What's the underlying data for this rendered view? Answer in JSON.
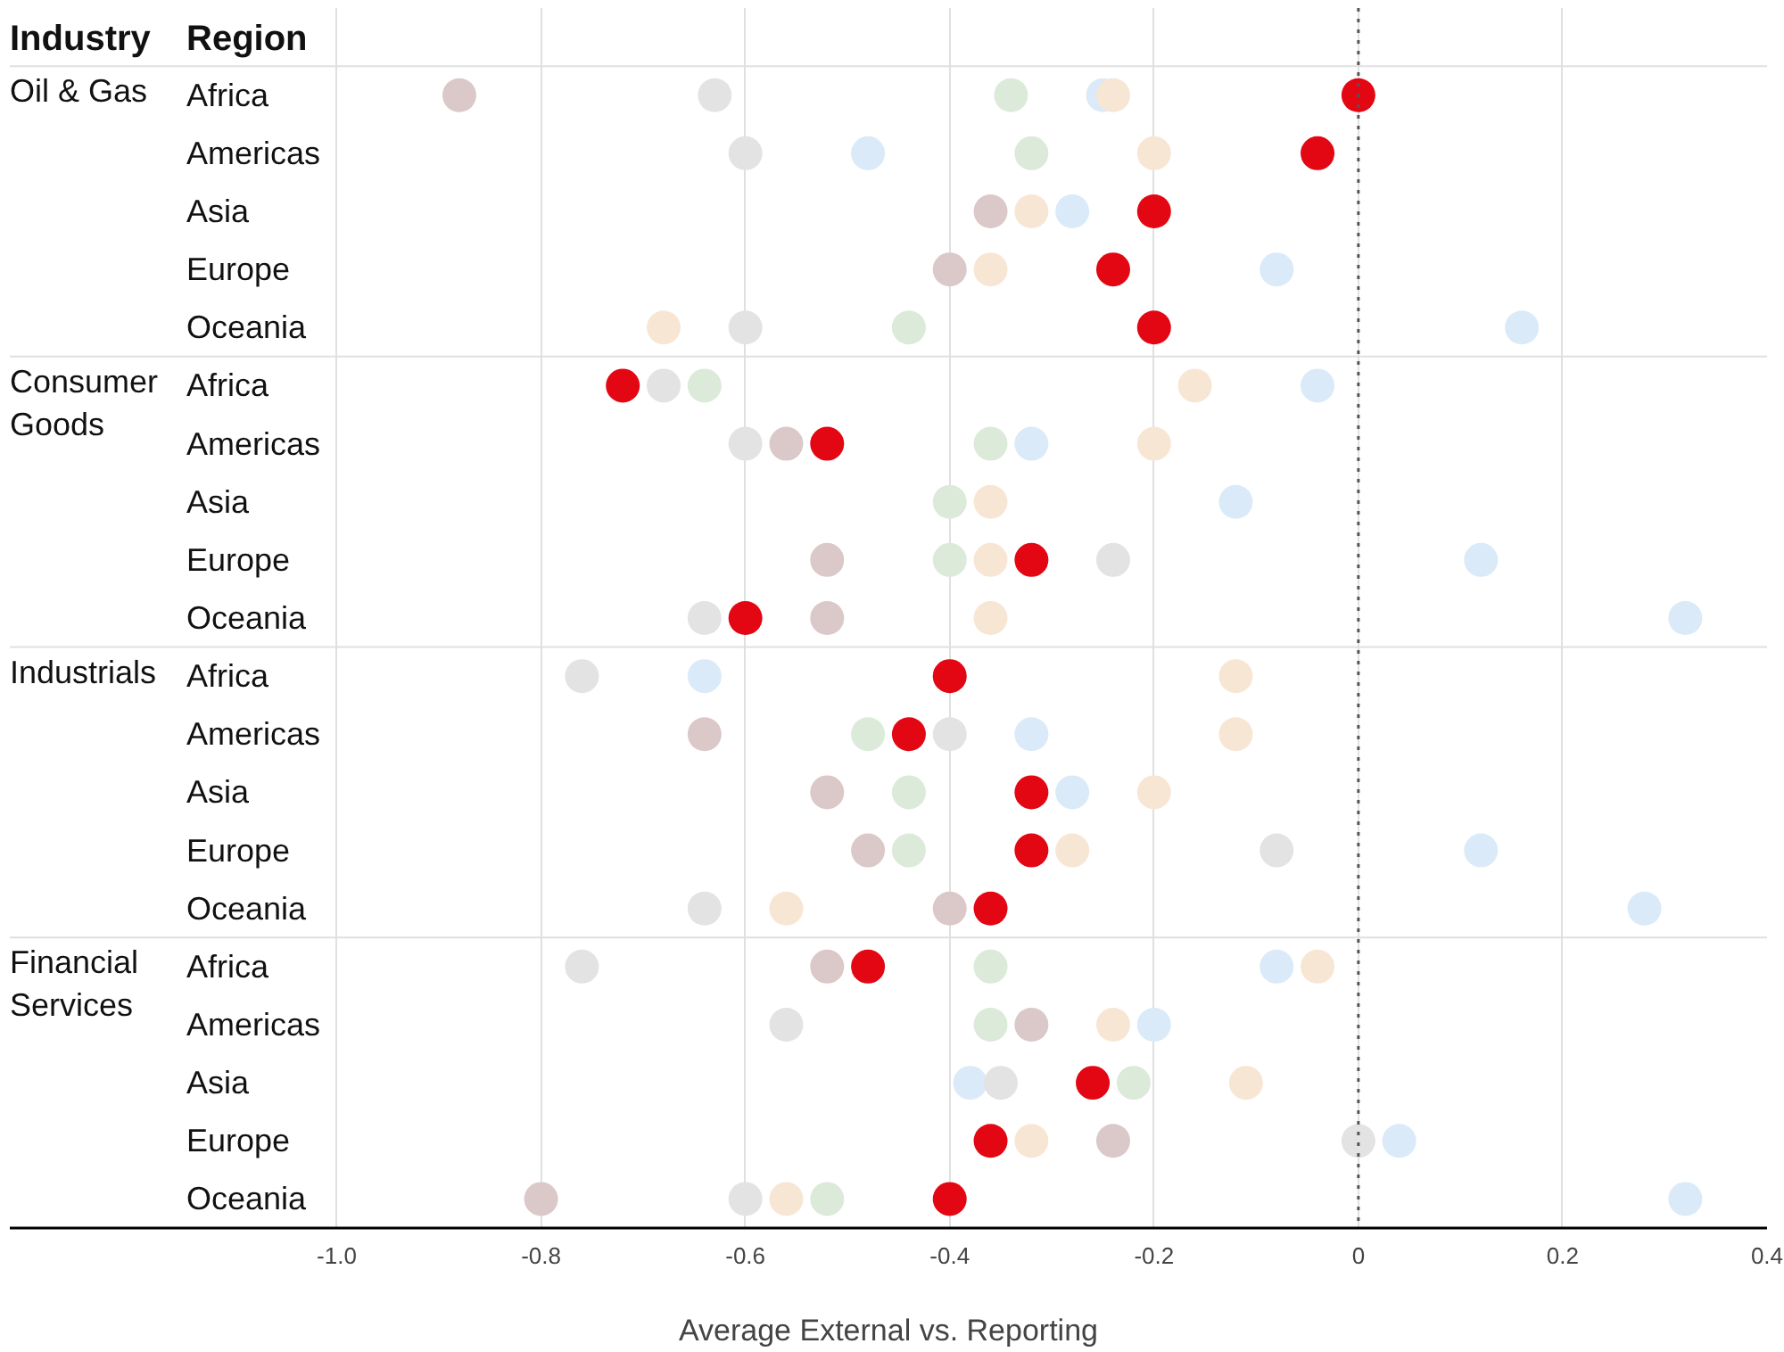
{
  "chart_data": {
    "type": "scatter",
    "orientation": "horizontal",
    "xlabel": "Average External vs. Reporting",
    "annotations": [
      "Industry",
      "Region",
      "Oil & Gas",
      "Consumer Goods",
      "Industrials",
      "Financial Services"
    ],
    "categories": [
      "Africa",
      "Americas",
      "Asia",
      "Europe",
      "Oceania",
      "Africa",
      "Americas",
      "Asia",
      "Europe",
      "Oceania",
      "Africa",
      "Americas",
      "Asia",
      "Europe",
      "Oceania",
      "Africa",
      "Americas",
      "Asia",
      "Europe",
      "Oceania"
    ],
    "series": [
      {
        "color": "#daeaf8",
        "values": [
          -0.25,
          -0.48,
          -0.28,
          -0.08,
          0.16,
          -0.04,
          -0.32,
          -0.12,
          0.12,
          0.32,
          -0.64,
          -0.32,
          -0.28,
          0.12,
          0.28,
          -0.08,
          -0.2,
          -0.38,
          0.04,
          0.32
        ]
      },
      {
        "color": "#e3e3e4",
        "values": [
          -0.63,
          -0.6,
          null,
          null,
          -0.6,
          -0.68,
          -0.6,
          null,
          -0.24,
          -0.64,
          -0.76,
          -0.4,
          null,
          -0.08,
          -0.64,
          -0.76,
          -0.56,
          -0.35,
          0,
          -0.6
        ]
      },
      {
        "color": "#dceada",
        "values": [
          -0.34,
          -0.32,
          null,
          null,
          -0.44,
          -0.64,
          -0.36,
          -0.4,
          -0.4,
          null,
          null,
          -0.48,
          -0.44,
          -0.44,
          null,
          -0.36,
          -0.36,
          -0.22,
          null,
          -0.52
        ]
      },
      {
        "color": "#f8e6d5",
        "values": [
          -0.24,
          -0.2,
          -0.32,
          -0.36,
          -0.68,
          -0.16,
          -0.2,
          -0.36,
          -0.36,
          -0.36,
          -0.12,
          -0.12,
          -0.2,
          -0.28,
          -0.56,
          -0.04,
          -0.24,
          -0.11,
          -0.32,
          -0.56
        ]
      },
      {
        "color": "#dbc8c8",
        "values": [
          -0.88,
          null,
          -0.36,
          -0.4,
          null,
          null,
          -0.56,
          null,
          -0.52,
          -0.52,
          null,
          -0.64,
          -0.52,
          -0.48,
          -0.4,
          -0.52,
          -0.32,
          null,
          -0.24,
          -0.8
        ]
      },
      {
        "color": "#e30613",
        "values": [
          0,
          -0.04,
          -0.2,
          -0.24,
          -0.2,
          -0.72,
          -0.52,
          null,
          -0.32,
          -0.6,
          -0.4,
          -0.44,
          -0.32,
          -0.32,
          -0.36,
          -0.48,
          null,
          -0.26,
          -0.36,
          -0.4
        ]
      }
    ],
    "xlim": [
      -1.32,
      0.4
    ],
    "xticks": [
      {
        "value": -1.0,
        "label": "-1.0"
      },
      -0.8,
      -0.6,
      -0.4,
      -0.2,
      0,
      0.2,
      0.4
    ],
    "ref_lines": [
      {
        "axis": "x",
        "value": 0,
        "color": "#555555",
        "line_style": "dotted"
      }
    ],
    "grid": "x",
    "marker": "circle"
  }
}
